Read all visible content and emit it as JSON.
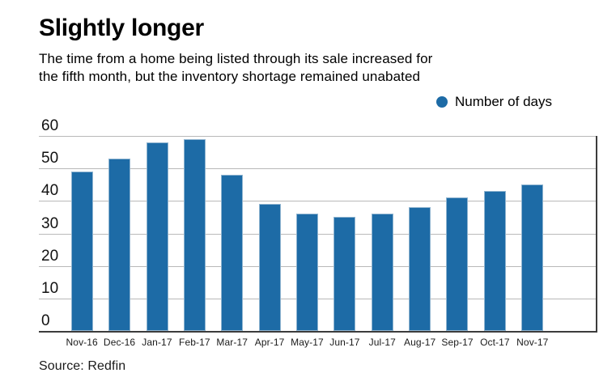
{
  "header": {
    "title": "Slightly longer",
    "subtitle_line1": "The time from a home being listed through its sale increased for",
    "subtitle_line2": "the fifth month, but the inventory shortage remained unabated"
  },
  "legend": {
    "label": "Number of days",
    "marker_color": "#1d6ba6"
  },
  "source": {
    "text": "Source: Redfin"
  },
  "colors": {
    "bar": "#1d6ba6",
    "bar_edge": "#8fb4d0",
    "gridline": "#b9b9b9",
    "axis": "#3c3c3c"
  },
  "chart_data": {
    "type": "bar",
    "title": "Slightly longer",
    "subtitle": "The time from a home being listed through its sale increased for the fifth month, but the inventory shortage remained unabated",
    "series_name": "Number of days",
    "categories": [
      "Nov-16",
      "Dec-16",
      "Jan-17",
      "Feb-17",
      "Mar-17",
      "Apr-17",
      "May-17",
      "Jun-17",
      "Jul-17",
      "Aug-17",
      "Sep-17",
      "Oct-17",
      "Nov-17"
    ],
    "values": [
      49,
      53,
      58,
      59,
      48,
      39,
      36,
      35,
      36,
      38,
      41,
      43,
      45
    ],
    "ylim": [
      0,
      60
    ],
    "yticks": [
      0,
      10,
      20,
      30,
      40,
      50,
      60
    ],
    "grid": true,
    "legend_position": "top-right",
    "source": "Source: Redfin"
  }
}
